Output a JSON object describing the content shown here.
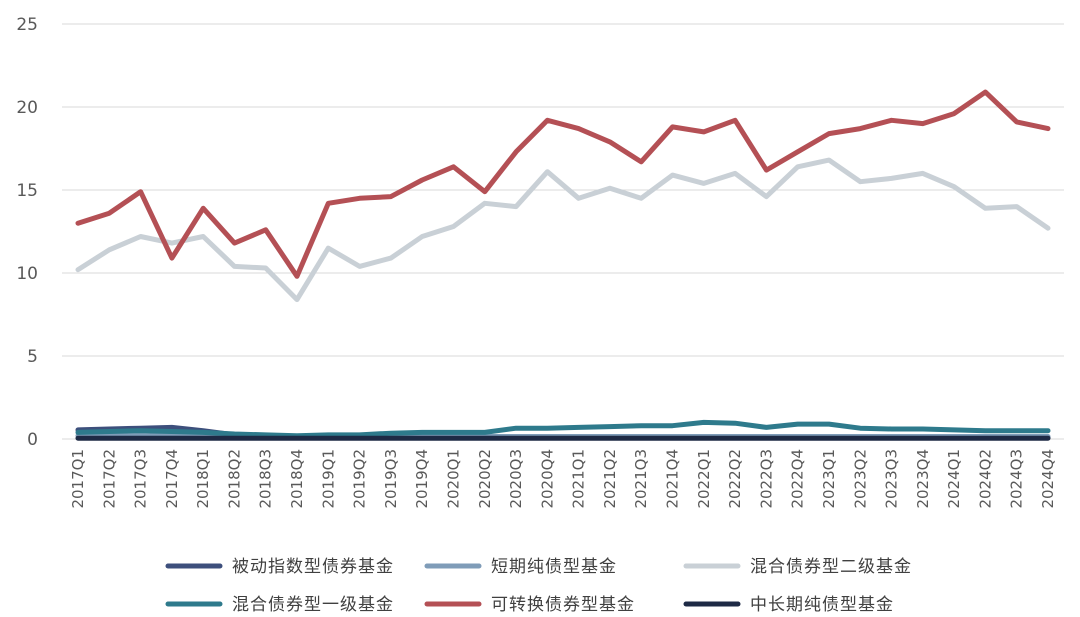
{
  "chart_data": {
    "type": "line",
    "title": "",
    "xlabel": "",
    "ylabel": "",
    "ylim": [
      0,
      25
    ],
    "yticks": [
      0,
      5,
      10,
      15,
      20,
      25
    ],
    "grid": "horizontal",
    "legend_position": "bottom",
    "categories": [
      "2017Q1",
      "2017Q2",
      "2017Q3",
      "2017Q4",
      "2018Q1",
      "2018Q2",
      "2018Q3",
      "2018Q4",
      "2019Q1",
      "2019Q2",
      "2019Q3",
      "2019Q4",
      "2020Q1",
      "2020Q2",
      "2020Q3",
      "2020Q4",
      "2021Q1",
      "2021Q2",
      "2021Q3",
      "2021Q4",
      "2022Q1",
      "2022Q2",
      "2022Q3",
      "2022Q4",
      "2023Q1",
      "2023Q2",
      "2023Q3",
      "2023Q4",
      "2024Q1",
      "2024Q2",
      "2024Q3",
      "2024Q4"
    ],
    "series": [
      {
        "name": "被动指数型债券基金",
        "color": "#3D4F7C",
        "values": [
          0.55,
          0.6,
          0.65,
          0.7,
          0.5,
          0.25,
          0.2,
          0.15,
          0.15,
          0.1,
          0.1,
          0.1,
          0.1,
          0.1,
          0.1,
          0.1,
          0.1,
          0.1,
          0.1,
          0.1,
          0.1,
          0.1,
          0.1,
          0.1,
          0.1,
          0.1,
          0.1,
          0.1,
          0.1,
          0.1,
          0.1,
          0.1
        ]
      },
      {
        "name": "短期纯债型基金",
        "color": "#7F9CB8",
        "values": [
          0.2,
          0.2,
          0.2,
          0.2,
          0.2,
          0.2,
          0.15,
          0.15,
          0.15,
          0.15,
          0.15,
          0.15,
          0.15,
          0.15,
          0.15,
          0.15,
          0.15,
          0.15,
          0.15,
          0.15,
          0.15,
          0.15,
          0.15,
          0.15,
          0.15,
          0.15,
          0.15,
          0.15,
          0.15,
          0.15,
          0.15,
          0.15
        ]
      },
      {
        "name": "混合债券型二级基金",
        "color": "#C9D0D6",
        "values": [
          10.2,
          11.4,
          12.2,
          11.8,
          12.2,
          10.4,
          10.3,
          8.4,
          11.5,
          10.4,
          10.9,
          12.2,
          12.8,
          14.2,
          14.0,
          16.1,
          14.5,
          15.1,
          14.5,
          15.9,
          15.4,
          16.0,
          14.6,
          16.4,
          16.8,
          15.5,
          15.7,
          16.0,
          15.2,
          13.9,
          14.0,
          12.7
        ]
      },
      {
        "name": "混合债券型一级基金",
        "color": "#2E7A8C",
        "values": [
          0.4,
          0.45,
          0.5,
          0.45,
          0.4,
          0.3,
          0.25,
          0.2,
          0.25,
          0.25,
          0.35,
          0.4,
          0.4,
          0.4,
          0.65,
          0.65,
          0.7,
          0.75,
          0.8,
          0.8,
          1.0,
          0.95,
          0.7,
          0.9,
          0.9,
          0.65,
          0.6,
          0.6,
          0.55,
          0.5,
          0.5,
          0.5
        ]
      },
      {
        "name": "可转换债券型基金",
        "color": "#B45055",
        "values": [
          13.0,
          13.6,
          14.9,
          10.9,
          13.9,
          11.8,
          12.6,
          9.8,
          14.2,
          14.5,
          14.6,
          15.6,
          16.4,
          14.9,
          17.3,
          19.2,
          18.7,
          17.9,
          16.7,
          18.8,
          18.5,
          19.2,
          16.2,
          17.3,
          18.4,
          18.7,
          19.2,
          19.0,
          19.6,
          20.9,
          19.1,
          18.7
        ]
      },
      {
        "name": "中长期纯债型基金",
        "color": "#1E2A45",
        "values": [
          0.05,
          0.05,
          0.05,
          0.05,
          0.05,
          0.05,
          0.05,
          0.05,
          0.05,
          0.05,
          0.05,
          0.05,
          0.05,
          0.05,
          0.05,
          0.05,
          0.05,
          0.05,
          0.05,
          0.05,
          0.05,
          0.05,
          0.05,
          0.05,
          0.05,
          0.05,
          0.05,
          0.05,
          0.05,
          0.05,
          0.05,
          0.05
        ]
      }
    ]
  }
}
